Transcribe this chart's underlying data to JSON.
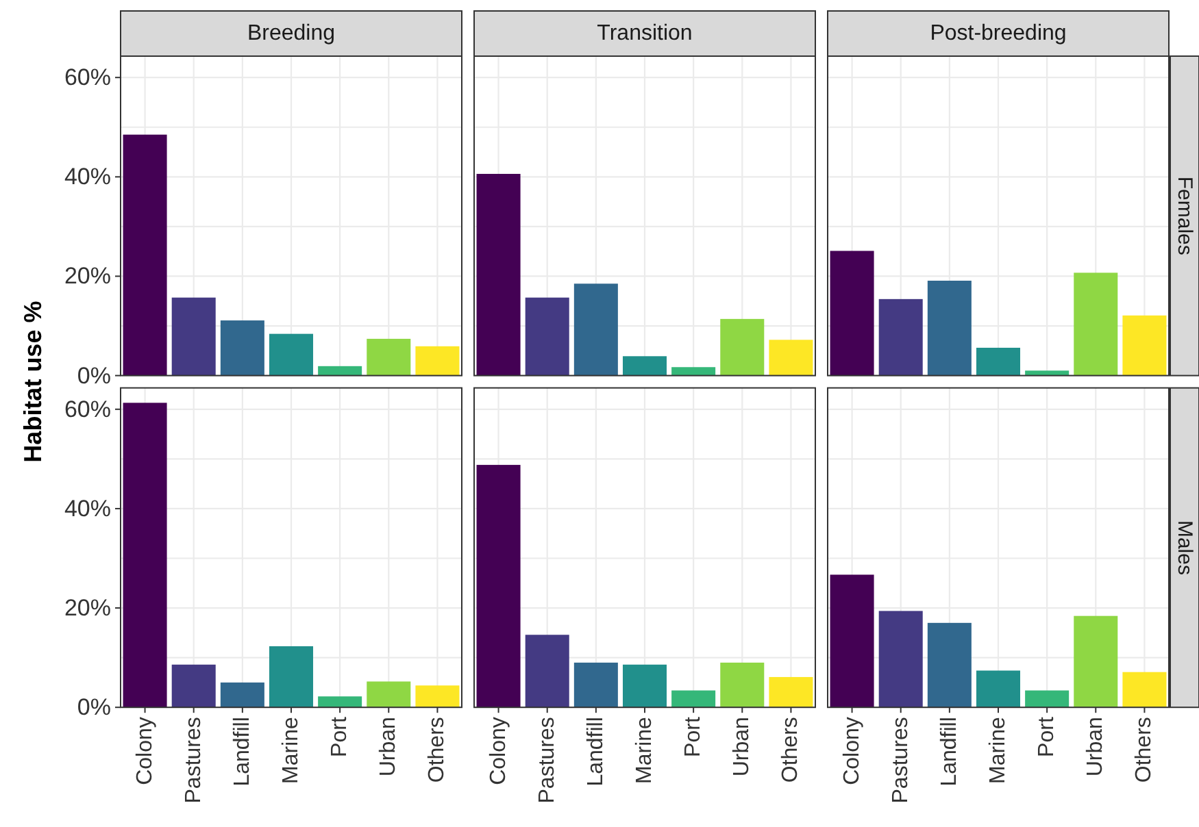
{
  "chart_data": [
    {
      "type": "bar",
      "title": "Breeding",
      "ylabel": "Habitat use %",
      "categories": [
        "Colony",
        "Pastures",
        "Landfill",
        "Marine",
        "Port",
        "Urban",
        "Others"
      ],
      "values": [
        48.5,
        15.7,
        11.1,
        8.4,
        1.9,
        7.4,
        5.9
      ],
      "colors": [
        "#440154",
        "#443a83",
        "#31688e",
        "#21908c",
        "#35b779",
        "#8fd744",
        "#fde725"
      ],
      "ylim": [
        0,
        64.3
      ],
      "yticks": [
        {
          "value": 0,
          "label": "0%"
        },
        {
          "value": 10,
          "label": null
        },
        {
          "value": 20,
          "label": "20%"
        },
        {
          "value": 30,
          "label": null
        },
        {
          "value": 40,
          "label": "40%"
        },
        {
          "value": 50,
          "label": null
        },
        {
          "value": 60,
          "label": "60%"
        }
      ],
      "grid": true,
      "tick_labels": "y"
    },
    {
      "type": "bar",
      "title": "Transition",
      "categories": [
        "Colony",
        "Pastures",
        "Landfill",
        "Marine",
        "Port",
        "Urban",
        "Others"
      ],
      "values": [
        40.6,
        15.7,
        18.5,
        3.9,
        1.7,
        11.4,
        7.2
      ],
      "colors": [
        "#440154",
        "#443a83",
        "#31688e",
        "#21908c",
        "#35b779",
        "#8fd744",
        "#fde725"
      ],
      "ylim": [
        0,
        64.3
      ],
      "yticks": [
        {
          "value": 0,
          "label": "0%"
        },
        {
          "value": 10,
          "label": null
        },
        {
          "value": 20,
          "label": "20%"
        },
        {
          "value": 30,
          "label": null
        },
        {
          "value": 40,
          "label": "40%"
        },
        {
          "value": 50,
          "label": null
        },
        {
          "value": 60,
          "label": "60%"
        }
      ],
      "grid": true,
      "tick_labels": false
    },
    {
      "type": "bar",
      "title": "Post-breeding",
      "annotations": [
        "Females"
      ],
      "categories": [
        "Colony",
        "Pastures",
        "Landfill",
        "Marine",
        "Port",
        "Urban",
        "Others"
      ],
      "values": [
        25.1,
        15.4,
        19.1,
        5.6,
        1.0,
        20.7,
        12.1
      ],
      "colors": [
        "#440154",
        "#443a83",
        "#31688e",
        "#21908c",
        "#35b779",
        "#8fd744",
        "#fde725"
      ],
      "ylim": [
        0,
        64.3
      ],
      "yticks": [
        {
          "value": 0,
          "label": "0%"
        },
        {
          "value": 10,
          "label": null
        },
        {
          "value": 20,
          "label": "20%"
        },
        {
          "value": 30,
          "label": null
        },
        {
          "value": 40,
          "label": "40%"
        },
        {
          "value": 50,
          "label": null
        },
        {
          "value": 60,
          "label": "60%"
        }
      ],
      "grid": true,
      "tick_labels": false
    },
    {
      "type": "bar",
      "categories": [
        "Colony",
        "Pastures",
        "Landfill",
        "Marine",
        "Port",
        "Urban",
        "Others"
      ],
      "values": [
        61.3,
        8.6,
        5.0,
        12.3,
        2.2,
        5.2,
        4.4
      ],
      "colors": [
        "#440154",
        "#443a83",
        "#31688e",
        "#21908c",
        "#35b779",
        "#8fd744",
        "#fde725"
      ],
      "ylim": [
        0,
        64.3
      ],
      "yticks": [
        {
          "value": 0,
          "label": "0%"
        },
        {
          "value": 10,
          "label": null
        },
        {
          "value": 20,
          "label": "20%"
        },
        {
          "value": 30,
          "label": null
        },
        {
          "value": 40,
          "label": "40%"
        },
        {
          "value": 50,
          "label": null
        },
        {
          "value": 60,
          "label": "60%"
        }
      ],
      "grid": true
    },
    {
      "type": "bar",
      "categories": [
        "Colony",
        "Pastures",
        "Landfill",
        "Marine",
        "Port",
        "Urban",
        "Others"
      ],
      "values": [
        48.8,
        14.6,
        9.0,
        8.6,
        3.4,
        9.0,
        6.1
      ],
      "colors": [
        "#440154",
        "#443a83",
        "#31688e",
        "#21908c",
        "#35b779",
        "#8fd744",
        "#fde725"
      ],
      "ylim": [
        0,
        64.3
      ],
      "yticks": [
        {
          "value": 0,
          "label": "0%"
        },
        {
          "value": 10,
          "label": null
        },
        {
          "value": 20,
          "label": "20%"
        },
        {
          "value": 30,
          "label": null
        },
        {
          "value": 40,
          "label": "40%"
        },
        {
          "value": 50,
          "label": null
        },
        {
          "value": 60,
          "label": "60%"
        }
      ],
      "grid": true,
      "tick_labels": "x"
    },
    {
      "type": "bar",
      "annotations": [
        "Males"
      ],
      "categories": [
        "Colony",
        "Pastures",
        "Landfill",
        "Marine",
        "Port",
        "Urban",
        "Others"
      ],
      "values": [
        26.7,
        19.4,
        17.0,
        7.4,
        3.4,
        18.4,
        7.1
      ],
      "colors": [
        "#440154",
        "#443a83",
        "#31688e",
        "#21908c",
        "#35b779",
        "#8fd744",
        "#fde725"
      ],
      "ylim": [
        0,
        64.3
      ],
      "yticks": [
        {
          "value": 0,
          "label": "0%"
        },
        {
          "value": 10,
          "label": null
        },
        {
          "value": 20,
          "label": "20%"
        },
        {
          "value": 30,
          "label": null
        },
        {
          "value": 40,
          "label": "40%"
        },
        {
          "value": 50,
          "label": null
        },
        {
          "value": 60,
          "label": "60%"
        }
      ],
      "grid": true,
      "tick_labels": "x"
    }
  ]
}
